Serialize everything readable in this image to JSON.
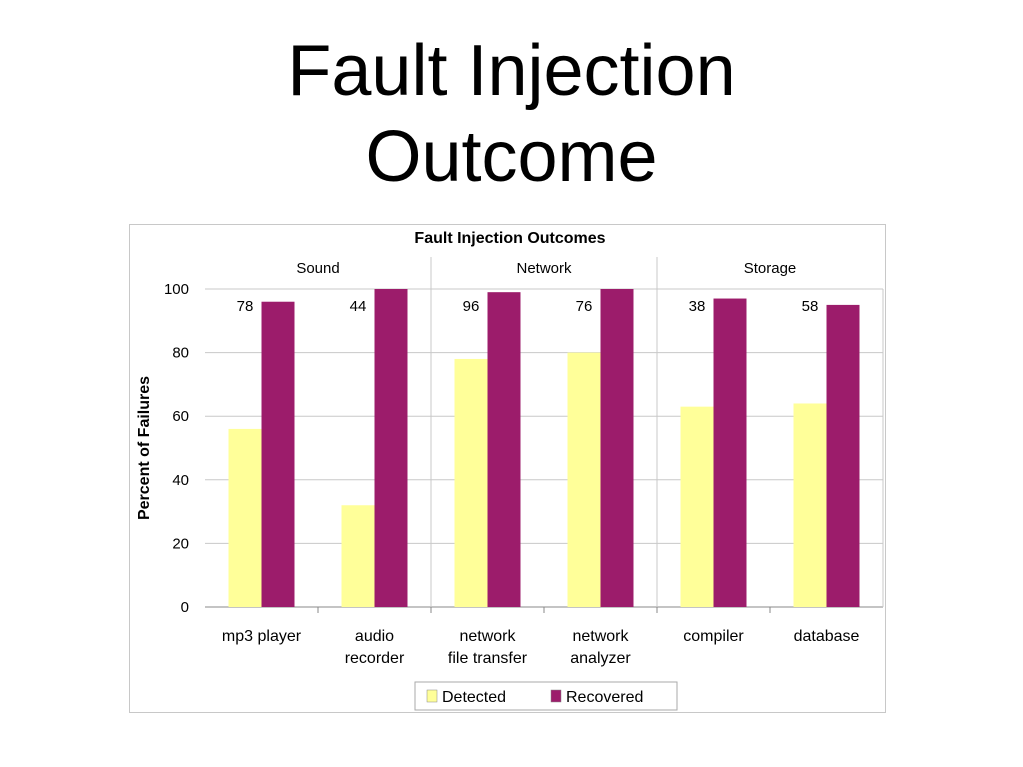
{
  "slide": {
    "title_line1": "Fault Injection",
    "title_line2": "Outcome"
  },
  "chart_data": {
    "type": "bar",
    "title": "Fault Injection Outcomes",
    "xlabel": "",
    "ylabel": "Percent of Failures",
    "ylim": [
      0,
      100
    ],
    "yticks": [
      0,
      20,
      40,
      60,
      80,
      100
    ],
    "grid": true,
    "legend_position": "bottom",
    "groups": [
      {
        "name": "Sound",
        "categories": [
          0,
          1
        ]
      },
      {
        "name": "Network",
        "categories": [
          2,
          3
        ]
      },
      {
        "name": "Storage",
        "categories": [
          4,
          5
        ]
      }
    ],
    "categories": [
      [
        "mp3 player"
      ],
      [
        "audio",
        "recorder"
      ],
      [
        "network",
        "file transfer"
      ],
      [
        "network",
        "analyzer"
      ],
      [
        "compiler"
      ],
      [
        "database"
      ]
    ],
    "series": [
      {
        "name": "Detected",
        "color": "#ffff99",
        "values": [
          56,
          32,
          78,
          80,
          63,
          64
        ]
      },
      {
        "name": "Recovered",
        "color": "#9c1c6b",
        "values": [
          96,
          100,
          99,
          100,
          97,
          95
        ]
      }
    ],
    "annotations": [
      "78",
      "44",
      "96",
      "76",
      "38",
      "58"
    ]
  }
}
